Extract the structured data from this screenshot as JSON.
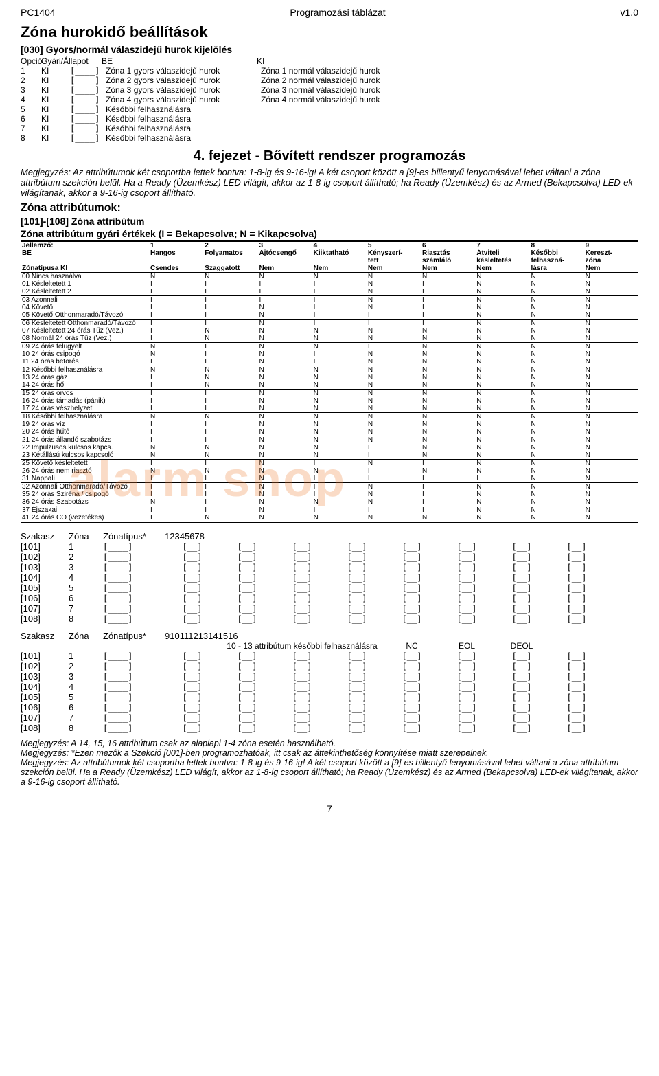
{
  "header": {
    "left": "PC1404",
    "center": "Programozási táblázat",
    "right": "v1.0"
  },
  "section030": {
    "title": "Zóna hurokidő beállítások",
    "subtitle": "[030] Gyors/normál válaszidejű hurok kijelölés",
    "cols": {
      "opcio": "Opció",
      "gyari": "Gyári/Állapot",
      "be": "BE",
      "ki": "KI"
    },
    "rows": [
      {
        "n": "1",
        "g": "KI",
        "be": "Zóna 1 gyors válaszidejű hurok",
        "ki": "Zóna 1 normál válaszidejű hurok"
      },
      {
        "n": "2",
        "g": "KI",
        "be": "Zóna 2 gyors válaszidejű hurok",
        "ki": "Zóna 2 normál válaszidejű hurok"
      },
      {
        "n": "3",
        "g": "KI",
        "be": "Zóna 3 gyors válaszidejű hurok",
        "ki": "Zóna 3 normál válaszidejű hurok"
      },
      {
        "n": "4",
        "g": "KI",
        "be": "Zóna 4 gyors válaszidejű hurok",
        "ki": "Zóna 4 normál válaszidejű hurok"
      },
      {
        "n": "5",
        "g": "KI",
        "be": "Későbbi felhasználásra",
        "ki": ""
      },
      {
        "n": "6",
        "g": "KI",
        "be": "Későbbi felhasználásra",
        "ki": ""
      },
      {
        "n": "7",
        "g": "KI",
        "be": "Későbbi felhasználásra",
        "ki": ""
      },
      {
        "n": "8",
        "g": "KI",
        "be": "Későbbi felhasználásra",
        "ki": ""
      }
    ]
  },
  "chapter4": {
    "title": "4. fejezet - Bővített rendszer programozás",
    "intro": "Megjegyzés: Az attribútumok két csoportba lettek bontva: 1-8-ig és 9-16-ig! A két csoport között a [9]-es billentyű lenyomásával lehet váltani a zóna attribútum szekción belül. Ha a Ready (Üzemkész) LED világít, akkor az 1-8-ig csoport állítható; ha Ready (Üzemkész) és az Armed (Bekapcsolva) LED-ek világítanak, akkor a 9-16-ig csoport állítható.",
    "subtitle1": "Zóna attribútumok:",
    "subtitle2": "[101]-[108] Zóna attribútum",
    "subtitle3": "Zóna attribútum gyári értékek (I = Bekapcsolva; N = Kikapcsolva)"
  },
  "attrTable": {
    "head1": {
      "label": "Jellemző:",
      "c1": "1",
      "c2": "2",
      "c3": "3",
      "c4": "4",
      "c5": "5",
      "c6": "6",
      "c7": "7",
      "c8": "8",
      "c9": "9"
    },
    "head2": {
      "label": "BE",
      "c1": "Hangos",
      "c2": "Folyamatos",
      "c3": "Ajtócsengő",
      "c4": "Kiiktatható",
      "c5": "Kényszerí-",
      "c6": "Riasztás",
      "c7": "Átviteli",
      "c8": "Későbbi",
      "c9": "Kereszt-"
    },
    "head3": {
      "label": "",
      "c1": "",
      "c2": "",
      "c3": "",
      "c4": "",
      "c5": "tett",
      "c6": "számláló",
      "c7": "késleltetés",
      "c8": "felhaszná-",
      "c9": "zóna"
    },
    "head4": {
      "label": "Zónatípusa          KI",
      "c1": "Csendes",
      "c2": "Szaggatott",
      "c3": "Nem",
      "c4": "Nem",
      "c5": "Nem",
      "c6": "Nem",
      "c7": "Nem",
      "c8": "lásra",
      "c9": "Nem"
    },
    "groups": [
      [
        {
          "label": "00 Nincs használva",
          "v": [
            "N",
            "N",
            "N",
            "N",
            "N",
            "N",
            "N",
            "N",
            "N"
          ]
        },
        {
          "label": "01 Késleltetett 1",
          "v": [
            "I",
            "I",
            "I",
            "I",
            "N",
            "I",
            "N",
            "N",
            "N"
          ]
        },
        {
          "label": "02 Késleltetett 2",
          "v": [
            "I",
            "I",
            "I",
            "I",
            "N",
            "I",
            "N",
            "N",
            "N"
          ]
        }
      ],
      [
        {
          "label": "03 Azonnali",
          "v": [
            "I",
            "I",
            "I",
            "I",
            "N",
            "I",
            "N",
            "N",
            "N"
          ]
        },
        {
          "label": "04 Követő",
          "v": [
            "I",
            "I",
            "N",
            "I",
            "N",
            "I",
            "N",
            "N",
            "N"
          ]
        },
        {
          "label": "05 Követő Otthonmaradó/Távozó",
          "v": [
            "I",
            "I",
            "N",
            "I",
            "I",
            "I",
            "N",
            "N",
            "N"
          ]
        }
      ],
      [
        {
          "label": "06 Késleltetett Otthonmaradó/Távozó",
          "v": [
            "I",
            "I",
            "N",
            "I",
            "I",
            "I",
            "N",
            "N",
            "N"
          ]
        },
        {
          "label": "07 Késleltetett 24 órás Tűz (Vez.)",
          "v": [
            "I",
            "N",
            "N",
            "N",
            "N",
            "N",
            "N",
            "N",
            "N"
          ]
        },
        {
          "label": "08 Normál 24 órás Tűz (Vez.)",
          "v": [
            "I",
            "N",
            "N",
            "N",
            "N",
            "N",
            "N",
            "N",
            "N"
          ]
        }
      ],
      [
        {
          "label": "09 24 órás felügyelt",
          "v": [
            "N",
            "I",
            "N",
            "N",
            "I",
            "N",
            "N",
            "N",
            "N"
          ]
        },
        {
          "label": "10 24 órás csipogó",
          "v": [
            "N",
            "I",
            "N",
            "I",
            "N",
            "N",
            "N",
            "N",
            "N"
          ]
        },
        {
          "label": "11 24 órás betörés",
          "v": [
            "I",
            "I",
            "N",
            "I",
            "N",
            "N",
            "N",
            "N",
            "N"
          ]
        }
      ],
      [
        {
          "label": "12 Későbbi felhasználásra",
          "v": [
            "N",
            "N",
            "N",
            "N",
            "N",
            "N",
            "N",
            "N",
            "N"
          ]
        },
        {
          "label": "13 24 órás gáz",
          "v": [
            "I",
            "N",
            "N",
            "N",
            "N",
            "N",
            "N",
            "N",
            "N"
          ]
        },
        {
          "label": "14 24 órás hő",
          "v": [
            "I",
            "N",
            "N",
            "N",
            "N",
            "N",
            "N",
            "N",
            "N"
          ]
        }
      ],
      [
        {
          "label": "15 24 órás orvos",
          "v": [
            "I",
            "I",
            "N",
            "N",
            "N",
            "N",
            "N",
            "N",
            "N"
          ]
        },
        {
          "label": "16 24 órás támadás (pánik)",
          "v": [
            "I",
            "I",
            "N",
            "N",
            "N",
            "N",
            "N",
            "N",
            "N"
          ]
        },
        {
          "label": "17 24 órás vészhelyzet",
          "v": [
            "I",
            "I",
            "N",
            "N",
            "N",
            "N",
            "N",
            "N",
            "N"
          ]
        }
      ],
      [
        {
          "label": "18 Későbbi felhasználásra",
          "v": [
            "N",
            "N",
            "N",
            "N",
            "N",
            "N",
            "N",
            "N",
            "N"
          ]
        },
        {
          "label": "19 24 órás víz",
          "v": [
            "I",
            "I",
            "N",
            "N",
            "N",
            "N",
            "N",
            "N",
            "N"
          ]
        },
        {
          "label": "20 24 órás hűtő",
          "v": [
            "I",
            "I",
            "N",
            "N",
            "N",
            "N",
            "N",
            "N",
            "N"
          ]
        }
      ],
      [
        {
          "label": "21 24 órás állandó szabotázs",
          "v": [
            "I",
            "I",
            "N",
            "N",
            "N",
            "N",
            "N",
            "N",
            "N"
          ]
        },
        {
          "label": "22 Impulzusos kulcsos kapcs.",
          "v": [
            "N",
            "N",
            "N",
            "N",
            "I",
            "N",
            "N",
            "N",
            "N"
          ]
        },
        {
          "label": "23 Kétállású kulcsos kapcsoló",
          "v": [
            "N",
            "N",
            "N",
            "N",
            "I",
            "N",
            "N",
            "N",
            "N"
          ]
        }
      ],
      [
        {
          "label": "25 Követő késleltetett",
          "v": [
            "I",
            "I",
            "N",
            "I",
            "N",
            "I",
            "N",
            "N",
            "N"
          ]
        },
        {
          "label": "26 24 órás nem riasztó",
          "v": [
            "N",
            "N",
            "N",
            "N",
            "I",
            "N",
            "N",
            "N",
            "N"
          ]
        },
        {
          "label": "31 Nappali",
          "v": [
            "I",
            "I",
            "N",
            "I",
            "I",
            "I",
            "I",
            "N",
            "N"
          ]
        }
      ],
      [
        {
          "label": "32 Azonnali Otthonmaradó/Távozó",
          "v": [
            "I",
            "I",
            "N",
            "I",
            "N",
            "I",
            "N",
            "N",
            "N"
          ]
        },
        {
          "label": "35 24 órás Sziréna / csipogó",
          "v": [
            "I",
            "I",
            "N",
            "I",
            "N",
            "I",
            "N",
            "N",
            "N"
          ]
        },
        {
          "label": "36 24 órás Szabotázs",
          "v": [
            "N",
            "I",
            "N",
            "N",
            "N",
            "I",
            "N",
            "N",
            "N"
          ]
        }
      ],
      [
        {
          "label": "37 Éjszakai",
          "v": [
            "I",
            "I",
            "N",
            "I",
            "I",
            "I",
            "N",
            "N",
            "N"
          ]
        },
        {
          "label": "41 24 órás CO (vezetékes)",
          "v": [
            "I",
            "N",
            "N",
            "N",
            "N",
            "N",
            "N",
            "N",
            "N"
          ]
        }
      ]
    ]
  },
  "watermark": "alarm shop",
  "sectionA": {
    "head": {
      "szakasz": "Szakasz",
      "zona": "Zóna",
      "zonatipus": "Zónatípus*"
    },
    "cols": [
      "1",
      "2",
      "3",
      "4",
      "5",
      "6",
      "7",
      "8"
    ],
    "rows": [
      {
        "sz": "[101]",
        "zn": "1"
      },
      {
        "sz": "[102]",
        "zn": "2"
      },
      {
        "sz": "[103]",
        "zn": "3"
      },
      {
        "sz": "[104]",
        "zn": "4"
      },
      {
        "sz": "[105]",
        "zn": "5"
      },
      {
        "sz": "[106]",
        "zn": "6"
      },
      {
        "sz": "[107]",
        "zn": "7"
      },
      {
        "sz": "[108]",
        "zn": "8"
      }
    ]
  },
  "sectionB": {
    "head": {
      "szakasz": "Szakasz",
      "zona": "Zóna",
      "zonatipus": "Zónatípus*"
    },
    "cols": [
      "9",
      "10",
      "11",
      "12",
      "13",
      "14",
      "15",
      "16"
    ],
    "sub": "10 - 13 attribútum későbbi felhasználásra",
    "subcols": {
      "c14": "NC",
      "c15": "EOL",
      "c16": "DEOL"
    },
    "rows": [
      {
        "sz": "[101]",
        "zn": "1"
      },
      {
        "sz": "[102]",
        "zn": "2"
      },
      {
        "sz": "[103]",
        "zn": "3"
      },
      {
        "sz": "[104]",
        "zn": "4"
      },
      {
        "sz": "[105]",
        "zn": "5"
      },
      {
        "sz": "[106]",
        "zn": "6"
      },
      {
        "sz": "[107]",
        "zn": "7"
      },
      {
        "sz": "[108]",
        "zn": "8"
      }
    ]
  },
  "notes": {
    "n1": "Megjegyzés: A 14, 15, 16 attribútum csak az alaplapi 1-4 zóna esetén használható.",
    "n2": "Megjegyzés: *Ezen mezők a Szekció [001]-ben programozhatóak, itt csak az áttekinthetőség könnyítése miatt szerepelnek.",
    "n3": "Megjegyzés: Az attribútumok két csoportba lettek bontva: 1-8-ig és 9-16-ig! A két csoport között a [9]-es billentyű lenyomásával lehet váltani a zóna attribútum szekción belül. Ha a Ready (Üzemkész) LED világít, akkor az 1-8-ig csoport állítható; ha Ready (Üzemkész) és az Armed (Bekapcsolva) LED-ek világítanak, akkor a 9-16-ig csoport állítható."
  },
  "pageNum": "7",
  "boxGlyph": "[____]"
}
